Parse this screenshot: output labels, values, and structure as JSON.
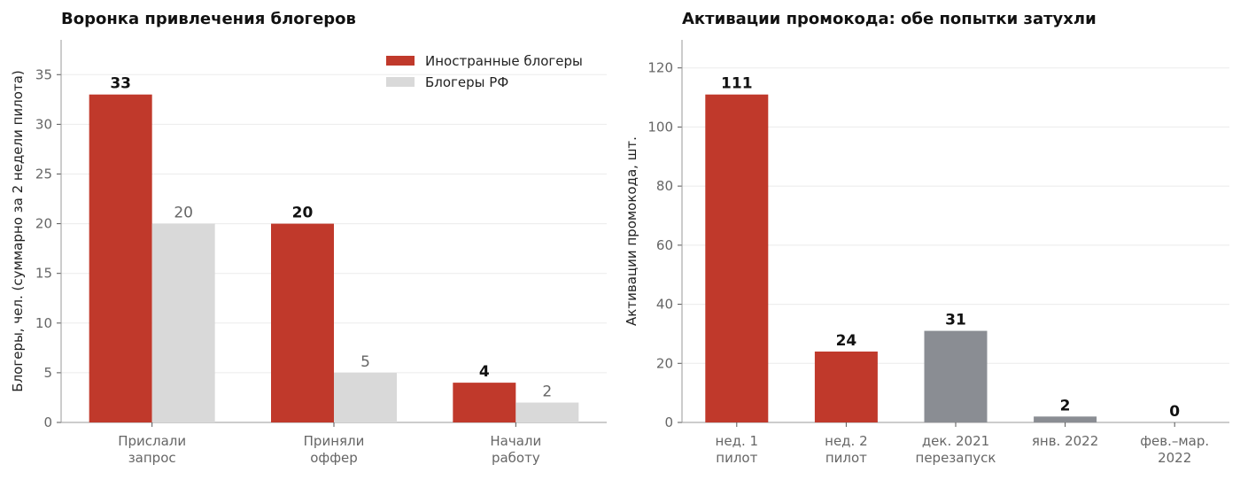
{
  "chart_data": [
    {
      "type": "bar",
      "title": "Воронка привлечения блогеров",
      "ylabel": "Блогеры, чел. (суммарно за 2 недели пилота)",
      "xlabel": "",
      "categories": [
        [
          "Прислали",
          "запрос"
        ],
        [
          "Приняли",
          "оффер"
        ],
        [
          "Начали",
          "работу"
        ]
      ],
      "series": [
        {
          "name": "Иностранные блогеры",
          "values": [
            33,
            20,
            4
          ],
          "color": "#c0392b",
          "label_style": "bold"
        },
        {
          "name": "Блогеры РФ",
          "values": [
            20,
            5,
            2
          ],
          "color": "#d9d9d9",
          "label_style": "normal"
        }
      ],
      "ylim": [
        0,
        38.5
      ],
      "yticks": [
        0,
        5,
        10,
        15,
        20,
        25,
        30,
        35
      ],
      "grid": "horizontal",
      "legend": "top-right"
    },
    {
      "type": "bar",
      "title": "Активации промокода: обе попытки затухли",
      "ylabel": "Активации промокода, шт.",
      "xlabel": "",
      "categories": [
        [
          "нед. 1",
          "пилот"
        ],
        [
          "нед. 2",
          "пилот"
        ],
        [
          "дек. 2021",
          "перезапуск"
        ],
        [
          "янв. 2022"
        ],
        [
          "фев.–мар.",
          "2022"
        ]
      ],
      "values": [
        111,
        24,
        31,
        2,
        0
      ],
      "colors": [
        "#c0392b",
        "#c0392b",
        "#8a8d93",
        "#8a8d93",
        "#8a8d93"
      ],
      "ylim": [
        0,
        129.5
      ],
      "yticks": [
        0,
        20,
        40,
        60,
        80,
        100,
        120
      ],
      "grid": "horizontal",
      "legend": "none"
    }
  ]
}
